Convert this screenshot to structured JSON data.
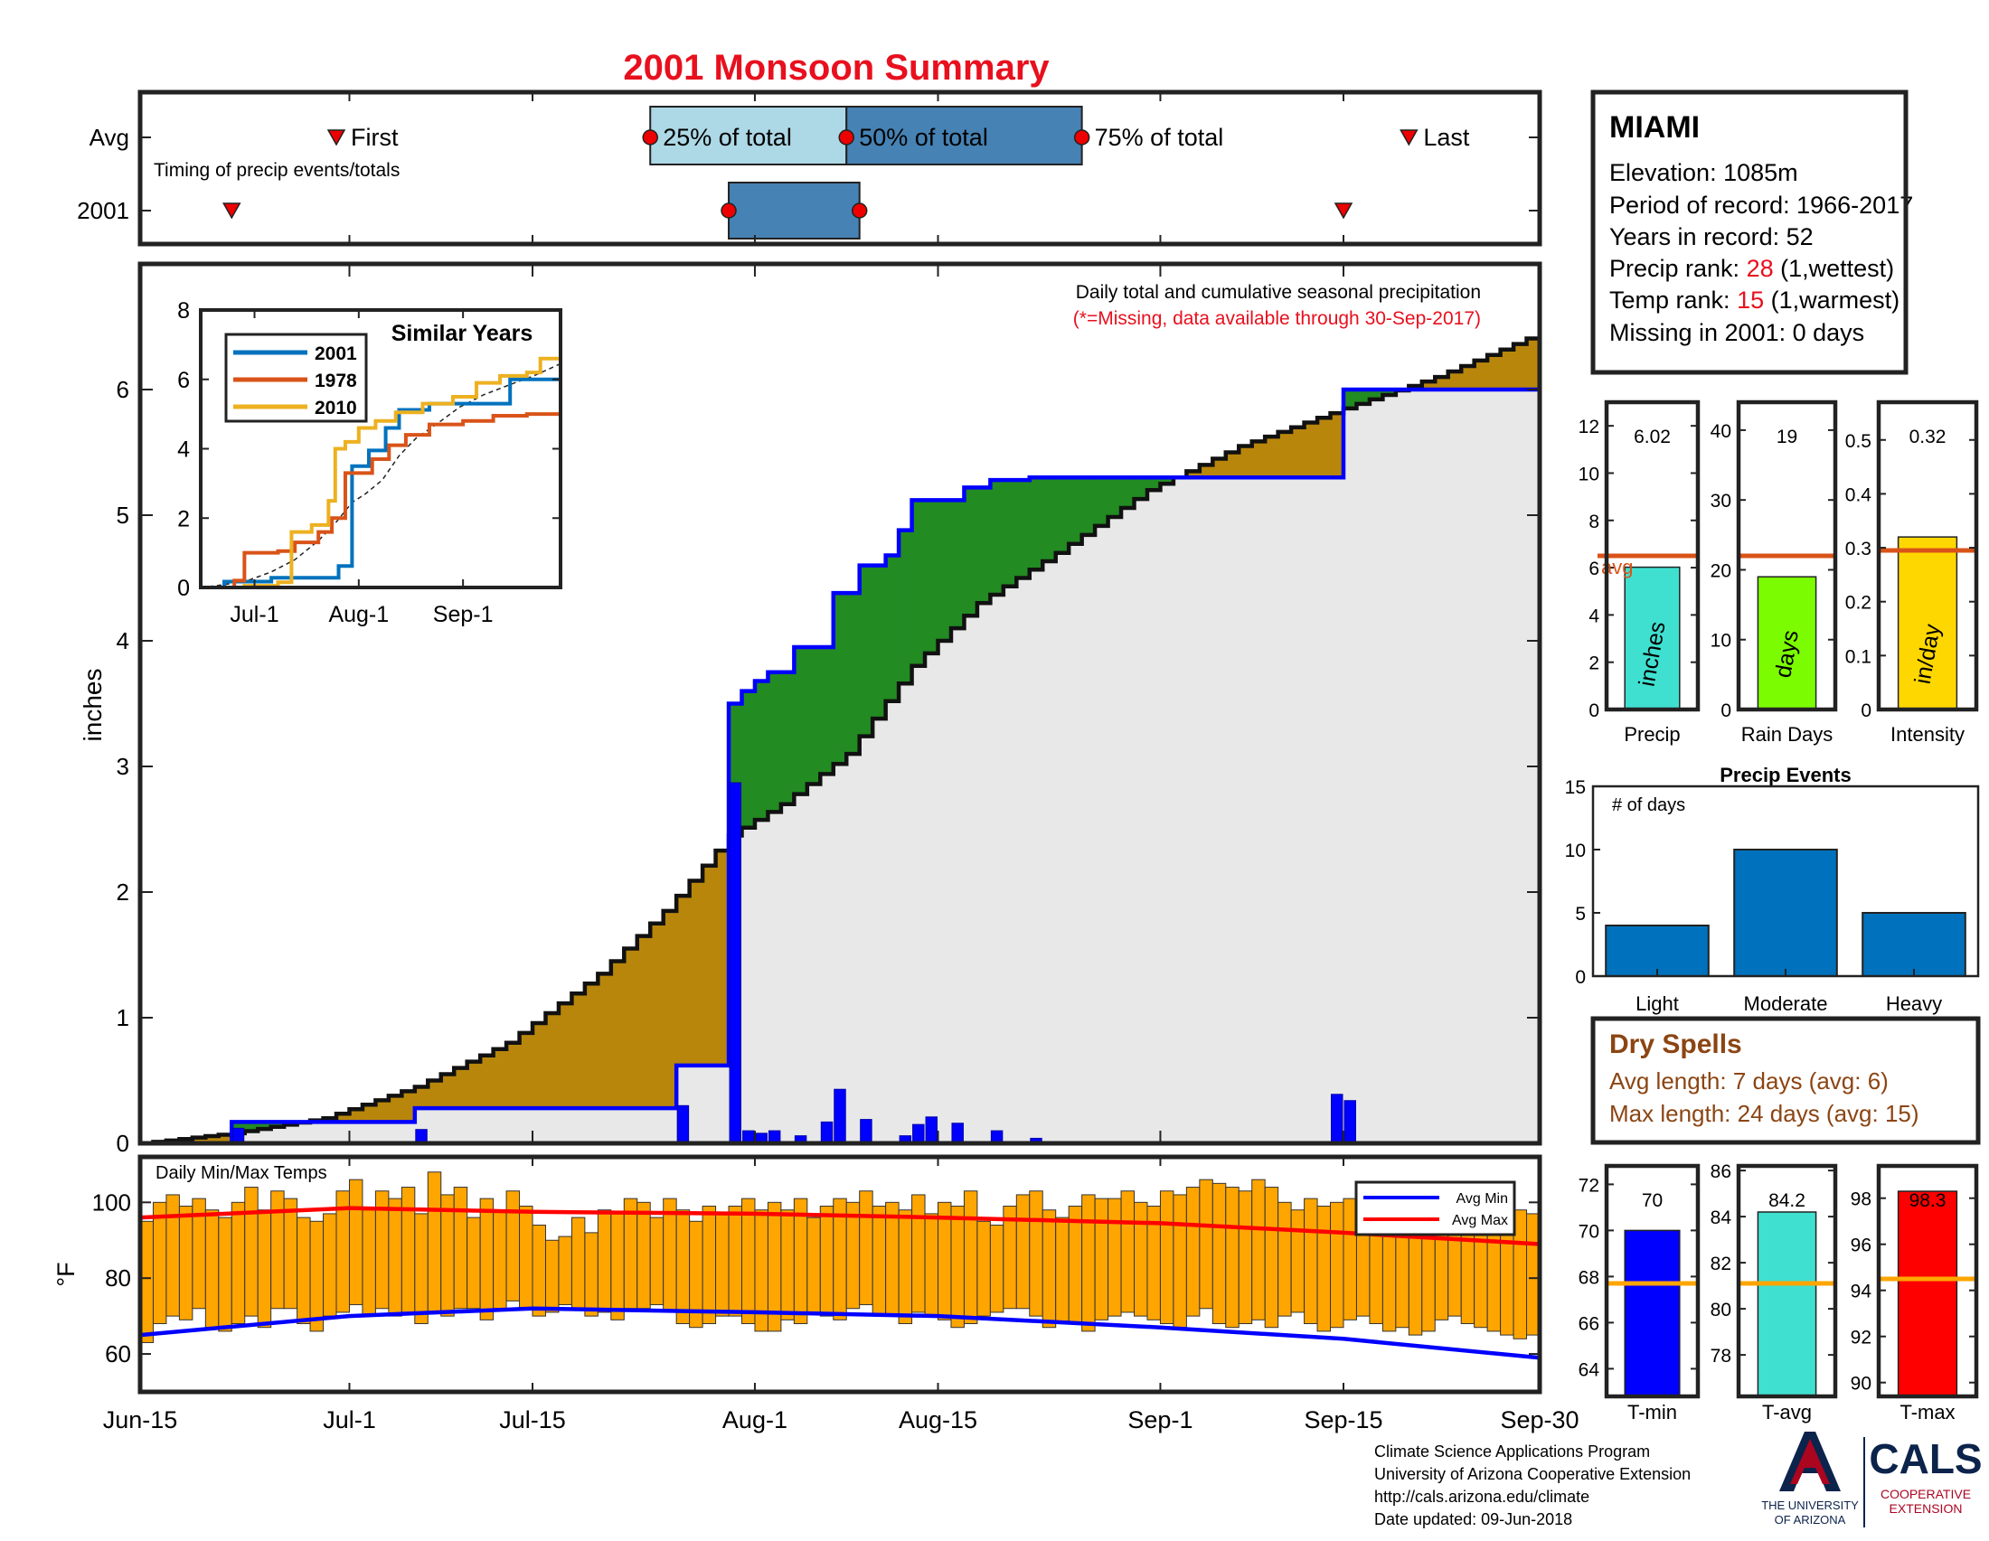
{
  "title": "2001 Monsoon Summary",
  "timing": {
    "row_avg": "Avg",
    "row_year": "2001",
    "caption": "Timing of precip events/totals",
    "first": "First",
    "p25": "25% of total",
    "p50": "50% of total",
    "p75": "75% of total",
    "last": "Last",
    "avg_first": "2001-06-30",
    "avg_p25": "2001-07-24",
    "avg_p50": "2001-08-08",
    "avg_p75": "2001-08-26",
    "avg_last": "2001-09-20",
    "year_first": "2001-06-22",
    "year_p25": "2001-07-30",
    "year_p50": "2001-08-09",
    "year_last": "2001-09-15"
  },
  "station": {
    "name": "MIAMI",
    "elevation": "Elevation: 1085m",
    "period": "Period of record: 1966-2017",
    "years": "Years in record: 52",
    "precip_rank_label": "Precip rank: ",
    "precip_rank": "28",
    "precip_rank_note": " (1,wettest)",
    "temp_rank_label": "Temp rank: ",
    "temp_rank": "15",
    "temp_rank_note": " (1,warmest)",
    "missing": "Missing in 2001: 0 days"
  },
  "main": {
    "note1": "Daily total and cumulative seasonal precipitation",
    "note2": "(*=Missing, data available through 30-Sep-2017)",
    "ylabel": "inches",
    "temp_title": "Daily Min/Max Temps",
    "temp_ylabel": "°F",
    "legend_min": "Avg Min",
    "legend_max": "Avg Max"
  },
  "similar_years": {
    "title": "Similar Years",
    "series": [
      "2001",
      "1978",
      "2010"
    ]
  },
  "summary_bars": {
    "precip": {
      "value": "6.02",
      "label": "Precip",
      "unit": "inches"
    },
    "raindays": {
      "value": "19",
      "label": "Rain Days",
      "unit": "days"
    },
    "intensity": {
      "value": "0.32",
      "label": "Intensity",
      "unit": "in/day"
    },
    "avg_label": "avg"
  },
  "events": {
    "title": "Precip Events",
    "ylabel": "# of days",
    "categories": [
      "Light",
      "Moderate",
      "Heavy"
    ],
    "values": [
      4,
      10,
      5
    ]
  },
  "dry_spells": {
    "title": "Dry Spells",
    "avg": "Avg length: 7 days (avg: 6)",
    "max": "Max length: 24 days (avg: 15)"
  },
  "temp_bars": {
    "tmin": {
      "value": "70",
      "label": "T-min"
    },
    "tavg": {
      "value": "84.2",
      "label": "T-avg"
    },
    "tmax": {
      "value": "98.3",
      "label": "T-max"
    }
  },
  "footer": {
    "line1": "Climate Science Applications Program",
    "line2": "University of Arizona Cooperative Extension",
    "line3": "http://cals.arizona.edu/climate",
    "line4": " Date updated: 09-Jun-2018",
    "ua1": "THE UNIVERSITY",
    "ua2": "OF ARIZONA",
    "cals": "CALS",
    "cals2": "COOPERATIVE",
    "cals3": "EXTENSION"
  },
  "colors": {
    "above": "#b8860b",
    "below": "#228b22",
    "seasonal_fill": "#e8e8e8",
    "year_line": "#0000ff",
    "temp_bar": "#ffa500",
    "avg_max": "#ff0000",
    "avg_min": "#0000ff",
    "accent_red": "#e8101e",
    "avg_line": "#d95319"
  },
  "chart_data": [
    {
      "type": "area",
      "x_axis": "date",
      "xlim": [
        "2001-06-15",
        "2001-09-30"
      ],
      "ylim": [
        0,
        7
      ],
      "yticks": [
        0,
        1,
        2,
        3,
        4,
        5,
        6
      ],
      "xticks": [
        "Jun-15",
        "Jul-1",
        "Jul-15",
        "Aug-1",
        "Aug-15",
        "Sep-1",
        "Sep-15",
        "Sep-30"
      ],
      "ylabel": "inches",
      "average_cumulative": {
        "x": [
          "2001-06-15",
          "2001-06-22",
          "2001-06-29",
          "2001-07-06",
          "2001-07-13",
          "2001-07-20",
          "2001-07-25",
          "2001-07-30",
          "2001-08-03",
          "2001-08-08",
          "2001-08-13",
          "2001-08-18",
          "2001-08-24",
          "2001-08-31",
          "2001-09-07",
          "2001-09-15",
          "2001-09-22",
          "2001-09-30"
        ],
        "y": [
          0,
          0.08,
          0.2,
          0.45,
          0.8,
          1.35,
          1.85,
          2.45,
          2.7,
          3.1,
          3.8,
          4.3,
          4.7,
          5.2,
          5.55,
          5.85,
          6.1,
          6.45
        ]
      },
      "cumulative_2001": {
        "x": [
          "2001-06-15",
          "2001-06-22",
          "2001-07-06",
          "2001-07-26",
          "2001-07-30",
          "2001-07-31",
          "2001-08-01",
          "2001-08-02",
          "2001-08-04",
          "2001-08-07",
          "2001-08-09",
          "2001-08-11",
          "2001-08-12",
          "2001-08-13",
          "2001-08-17",
          "2001-08-19",
          "2001-08-22",
          "2001-09-14",
          "2001-09-15",
          "2001-09-30"
        ],
        "y": [
          0,
          0.17,
          0.28,
          0.62,
          3.5,
          3.6,
          3.68,
          3.75,
          3.95,
          4.38,
          4.6,
          4.68,
          4.88,
          5.12,
          5.22,
          5.28,
          5.3,
          5.3,
          6.0,
          6.0
        ]
      },
      "daily_2001": {
        "x": [
          "2001-06-22",
          "2001-07-06",
          "2001-07-26",
          "2001-07-30",
          "2001-07-31",
          "2001-08-01",
          "2001-08-02",
          "2001-08-04",
          "2001-08-06",
          "2001-08-07",
          "2001-08-09",
          "2001-08-12",
          "2001-08-13",
          "2001-08-14",
          "2001-08-16",
          "2001-08-19",
          "2001-08-22",
          "2001-09-14",
          "2001-09-15"
        ],
        "y": [
          0.12,
          0.11,
          0.3,
          2.87,
          0.1,
          0.08,
          0.1,
          0.06,
          0.17,
          0.43,
          0.19,
          0.06,
          0.15,
          0.21,
          0.16,
          0.1,
          0.04,
          0.39,
          0.34
        ]
      }
    },
    {
      "type": "line",
      "title": "Similar Years",
      "xticks": [
        "Jul-1",
        "Aug-1",
        "Sep-1"
      ],
      "ylim": [
        0,
        8
      ],
      "yticks": [
        0,
        2,
        4,
        6,
        8
      ],
      "series": [
        {
          "name": "2001",
          "x": [
            "2001-06-15",
            "2001-06-22",
            "2001-07-06",
            "2001-07-26",
            "2001-07-30",
            "2001-08-04",
            "2001-08-09",
            "2001-08-13",
            "2001-08-22",
            "2001-09-14",
            "2001-09-15",
            "2001-09-30"
          ],
          "y": [
            0,
            0.17,
            0.28,
            0.62,
            3.5,
            3.95,
            4.6,
            5.12,
            5.3,
            5.3,
            6.0,
            6.0
          ]
        },
        {
          "name": "1978",
          "x": [
            "2001-06-15",
            "2001-06-25",
            "2001-06-28",
            "2001-07-08",
            "2001-07-13",
            "2001-07-20",
            "2001-07-24",
            "2001-07-28",
            "2001-08-05",
            "2001-08-10",
            "2001-08-15",
            "2001-08-22",
            "2001-09-01",
            "2001-09-10",
            "2001-09-20",
            "2001-09-30"
          ],
          "y": [
            0,
            0.2,
            1.0,
            1.05,
            1.3,
            1.6,
            2.0,
            3.3,
            3.7,
            4.1,
            4.4,
            4.7,
            4.8,
            4.95,
            5.0,
            5.1
          ]
        },
        {
          "name": "2010",
          "x": [
            "2001-06-15",
            "2001-06-28",
            "2001-07-08",
            "2001-07-12",
            "2001-07-18",
            "2001-07-23",
            "2001-07-25",
            "2001-07-28",
            "2001-08-01",
            "2001-08-06",
            "2001-08-12",
            "2001-08-20",
            "2001-08-29",
            "2001-09-05",
            "2001-09-12",
            "2001-09-20",
            "2001-09-24",
            "2001-09-30"
          ],
          "y": [
            0,
            0.05,
            0.15,
            1.6,
            1.8,
            2.5,
            4.0,
            4.2,
            4.6,
            4.8,
            5.05,
            5.3,
            5.5,
            5.9,
            6.1,
            6.2,
            6.6,
            6.6
          ]
        }
      ]
    },
    {
      "type": "bar",
      "title": "Precip Events",
      "categories": [
        "Light",
        "Moderate",
        "Heavy"
      ],
      "values": [
        4,
        10,
        5
      ],
      "ylim": [
        0,
        15
      ],
      "yticks": [
        0,
        5,
        10,
        15
      ]
    },
    {
      "type": "bar",
      "series": [
        {
          "name": "Precip",
          "value": 6.02,
          "avg": 6.5,
          "ylim": [
            0,
            13
          ],
          "yticks": [
            0,
            2,
            4,
            6,
            8,
            10,
            12
          ],
          "color": "#40e0d0"
        },
        {
          "name": "Rain Days",
          "value": 19,
          "avg": 22,
          "ylim": [
            0,
            44
          ],
          "yticks": [
            0,
            10,
            20,
            30,
            40
          ],
          "color": "#7cfc00"
        },
        {
          "name": "Intensity",
          "value": 0.32,
          "avg": 0.295,
          "ylim": [
            0,
            0.57
          ],
          "yticks": [
            0,
            0.1,
            0.2,
            0.3,
            0.4,
            0.5
          ],
          "color": "#ffd700"
        }
      ]
    },
    {
      "type": "bar",
      "series": [
        {
          "name": "T-min",
          "value": 70,
          "avg": 67.7,
          "ylim": [
            62.8,
            72.8
          ],
          "yticks": [
            64,
            66,
            68,
            70,
            72
          ],
          "color": "#0000ff"
        },
        {
          "name": "T-avg",
          "value": 84.2,
          "avg": 81.1,
          "ylim": [
            76.2,
            86.2
          ],
          "yticks": [
            78,
            80,
            82,
            84,
            86
          ],
          "color": "#40e0d0"
        },
        {
          "name": "T-max",
          "value": 98.3,
          "avg": 94.5,
          "ylim": [
            89.4,
            99.4
          ],
          "yticks": [
            90,
            92,
            94,
            96,
            98
          ],
          "color": "#ff0000"
        }
      ]
    },
    {
      "type": "bar",
      "title": "Daily Min/Max Temps",
      "ylim": [
        50,
        112
      ],
      "yticks": [
        60,
        80,
        100
      ],
      "start_date": "2001-06-15",
      "daily_min": [
        63,
        68,
        70,
        69,
        72,
        67,
        66,
        68,
        70,
        67,
        72,
        72,
        68,
        66,
        70,
        71,
        73,
        70,
        72,
        70,
        71,
        68,
        71,
        70,
        72,
        72,
        69,
        72,
        74,
        72,
        70,
        71,
        73,
        72,
        70,
        71,
        69,
        72,
        72,
        73,
        71,
        68,
        67,
        68,
        70,
        70,
        68,
        66,
        66,
        69,
        68,
        71,
        70,
        69,
        72,
        73,
        70,
        70,
        68,
        71,
        70,
        69,
        67,
        68,
        70,
        71,
        72,
        72,
        70,
        67,
        68,
        68,
        66,
        69,
        70,
        71,
        70,
        69,
        68,
        67,
        70,
        72,
        68,
        67,
        68,
        69,
        67,
        70,
        71,
        68,
        66,
        67,
        69,
        70,
        68,
        66,
        67,
        65,
        66,
        69,
        70,
        68,
        67,
        66,
        65,
        64,
        65,
        66
      ],
      "daily_max": [
        95,
        100,
        102,
        99,
        101,
        98,
        96,
        100,
        104,
        98,
        103,
        101,
        96,
        95,
        97,
        103,
        106,
        98,
        103,
        101,
        104,
        97,
        108,
        102,
        104,
        96,
        101,
        98,
        103,
        99,
        94,
        90,
        91,
        96,
        92,
        98,
        97,
        101,
        100,
        96,
        101,
        98,
        95,
        99,
        97,
        99,
        101,
        98,
        100,
        98,
        101,
        96,
        99,
        101,
        100,
        103,
        99,
        100,
        98,
        102,
        97,
        100,
        99,
        103,
        95,
        94,
        99,
        102,
        103,
        98,
        96,
        99,
        102,
        101,
        101,
        103,
        100,
        99,
        103,
        102,
        104,
        106,
        105,
        104,
        103,
        106,
        104,
        100,
        98,
        101,
        99,
        100,
        101,
        98,
        96,
        99,
        97,
        101,
        98,
        100,
        99,
        95,
        97,
        94,
        96,
        98,
        97,
        96
      ],
      "avg_max": {
        "x": [
          "2001-06-15",
          "2001-07-01",
          "2001-07-15",
          "2001-08-01",
          "2001-08-15",
          "2001-09-01",
          "2001-09-15",
          "2001-09-30"
        ],
        "y": [
          96,
          98.5,
          97.5,
          97,
          96,
          94.5,
          92,
          89
        ]
      },
      "avg_min": {
        "x": [
          "2001-06-15",
          "2001-07-01",
          "2001-07-15",
          "2001-08-01",
          "2001-08-15",
          "2001-09-01",
          "2001-09-15",
          "2001-09-30"
        ],
        "y": [
          65,
          70,
          72,
          71,
          70,
          67,
          64,
          59
        ]
      }
    }
  ]
}
